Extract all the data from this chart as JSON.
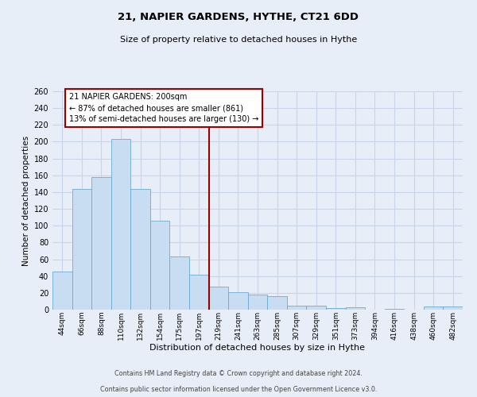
{
  "title": "21, NAPIER GARDENS, HYTHE, CT21 6DD",
  "subtitle": "Size of property relative to detached houses in Hythe",
  "xlabel": "Distribution of detached houses by size in Hythe",
  "ylabel": "Number of detached properties",
  "bar_labels": [
    "44sqm",
    "66sqm",
    "88sqm",
    "110sqm",
    "132sqm",
    "154sqm",
    "175sqm",
    "197sqm",
    "219sqm",
    "241sqm",
    "263sqm",
    "285sqm",
    "307sqm",
    "329sqm",
    "351sqm",
    "373sqm",
    "394sqm",
    "416sqm",
    "438sqm",
    "460sqm",
    "482sqm"
  ],
  "bar_values": [
    45,
    144,
    158,
    203,
    144,
    106,
    63,
    42,
    27,
    21,
    18,
    16,
    5,
    5,
    2,
    3,
    0,
    1,
    0,
    4,
    4
  ],
  "bar_color": "#c8ddf2",
  "bar_edge_color": "#6aaad4",
  "vline_color": "#990000",
  "vline_index": 7.5,
  "annotation_title": "21 NAPIER GARDENS: 200sqm",
  "annotation_line1": "← 87% of detached houses are smaller (861)",
  "annotation_line2": "13% of semi-detached houses are larger (130) →",
  "annotation_box_edgecolor": "#990000",
  "ylim_max": 260,
  "ytick_step": 20,
  "grid_color": "#c8d4e8",
  "bg_color": "#e8eef8",
  "footer_line1": "Contains HM Land Registry data © Crown copyright and database right 2024.",
  "footer_line2": "Contains public sector information licensed under the Open Government Licence v3.0."
}
